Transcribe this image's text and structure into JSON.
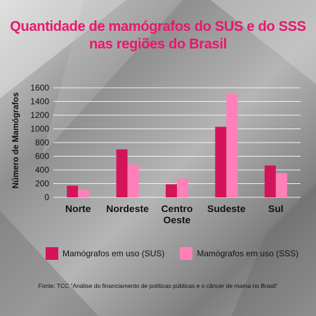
{
  "title_line1": "Quantidade de mamógrafos do SUS e do SSS",
  "title_line2": "nas regiões do Brasil",
  "source": "Fonte: TCC “Análise do financiamento de políticas públicas e o câncer de mama no Brasil”",
  "colors": {
    "sus": "#d4145a",
    "sss": "#ff80b8",
    "title": "#e8176f",
    "grid": "#f2f2f2"
  },
  "chart_data": {
    "type": "bar",
    "title": "Quantidade de mamógrafos do SUS e do SSS nas regiões do Brasil",
    "xlabel": "",
    "ylabel": "Número de Mamógrafos",
    "categories": [
      "Norte",
      "Nordeste",
      "Centro\nOeste",
      "Sudeste",
      "Sul"
    ],
    "series": [
      {
        "name": "Mamógrafos em uso (SUS)",
        "values": [
          170,
          700,
          190,
          1030,
          465
        ]
      },
      {
        "name": "Mamógrafos em uso (SSS)",
        "values": [
          110,
          480,
          275,
          1510,
          355
        ]
      }
    ],
    "ylim": [
      0,
      1600
    ],
    "yticks": [
      0,
      200,
      400,
      600,
      800,
      1000,
      1200,
      1400,
      1600
    ],
    "grid": true,
    "legend_position": "bottom"
  }
}
